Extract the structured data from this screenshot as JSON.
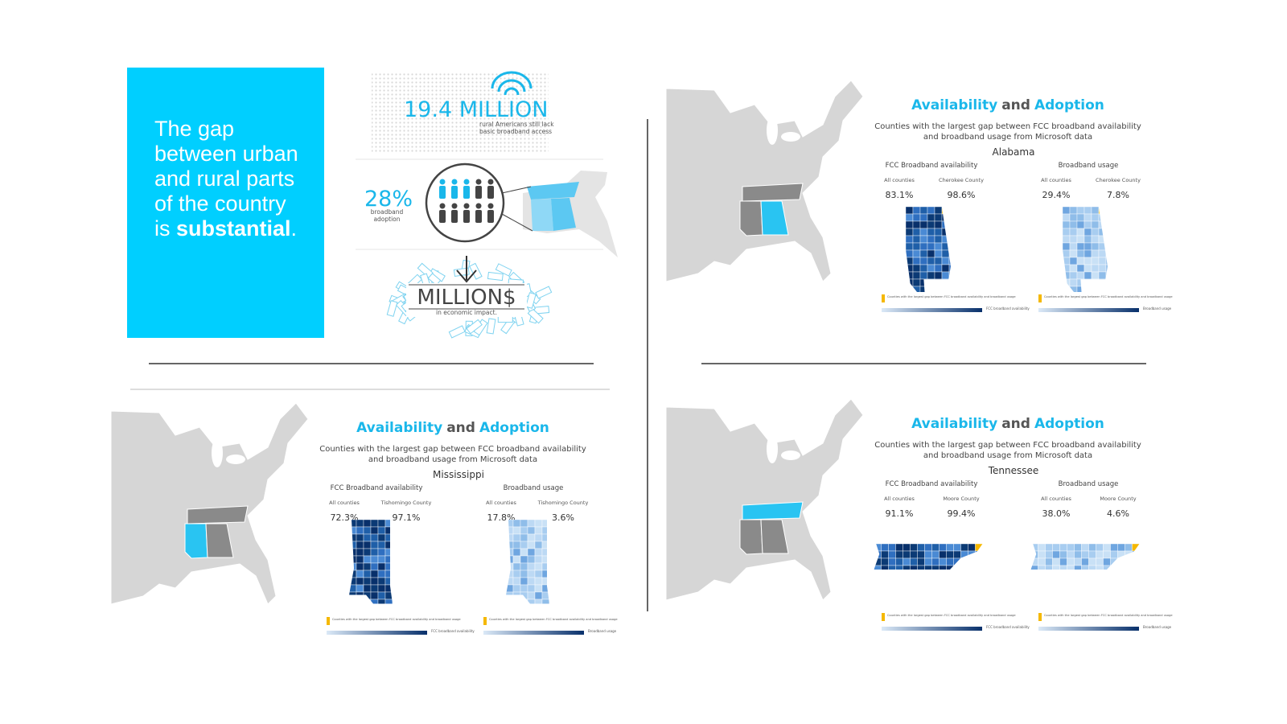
{
  "headline": {
    "text": "The gap between urban and rural parts of the country is",
    "emphasis": "substantial",
    "end": "."
  },
  "infographic": {
    "stat_people": "19.4 MILLION",
    "stat_people_caption": "rural Americans still lack basic broadband access",
    "stat_adoption": "28%",
    "stat_adoption_caption": "broadband adoption",
    "stat_money": "MILLION$",
    "stat_money_caption": "in economic impact."
  },
  "panels": [
    {
      "title": {
        "left": "Availability",
        "mid": "and",
        "right": "Adoption"
      },
      "subtitle": "Counties with the largest gap between FCC broadband availability and broadband usage from Microsoft data",
      "state": "Alabama",
      "columns": [
        {
          "heading": "FCC Broadband availability",
          "labels": [
            "All counties",
            "Cherokee County"
          ],
          "values": [
            "83.1%",
            "98.6%"
          ],
          "legend": "FCC broadband availability"
        },
        {
          "heading": "Broadband usage",
          "labels": [
            "All counties",
            "Cherokee County"
          ],
          "values": [
            "29.4%",
            "7.8%"
          ],
          "legend": "Broadband usage"
        }
      ],
      "legend_note": "Counties with the largest gap between FCC broadband availability and broadband usage"
    },
    {
      "title": {
        "left": "Availability",
        "mid": "and",
        "right": "Adoption"
      },
      "subtitle": "Counties with the largest gap between FCC broadband availability and broadband usage from Microsoft data",
      "state": "Mississippi",
      "columns": [
        {
          "heading": "FCC Broadband availability",
          "labels": [
            "All counties",
            "Tishomingo County"
          ],
          "values": [
            "72.3%",
            "97.1%"
          ],
          "legend": "FCC broadband availability"
        },
        {
          "heading": "Broadband usage",
          "labels": [
            "All counties",
            "Tishomingo County"
          ],
          "values": [
            "17.8%",
            "3.6%"
          ],
          "legend": "Broadband usage"
        }
      ],
      "legend_note": "Counties with the largest gap between FCC broadband availability and broadband usage"
    },
    {
      "title": {
        "left": "Availability",
        "mid": "and",
        "right": "Adoption"
      },
      "subtitle": "Counties with the largest gap between FCC broadband availability and broadband usage from Microsoft data",
      "state": "Tennessee",
      "columns": [
        {
          "heading": "FCC Broadband availability",
          "labels": [
            "All counties",
            "Moore County"
          ],
          "values": [
            "91.1%",
            "99.4%"
          ],
          "legend": "FCC broadband availability"
        },
        {
          "heading": "Broadband usage",
          "labels": [
            "All counties",
            "Moore County"
          ],
          "values": [
            "38.0%",
            "4.6%"
          ],
          "legend": "Broadband usage"
        }
      ],
      "legend_note": "Counties with the largest gap between FCC broadband availability and broadband usage"
    }
  ]
}
